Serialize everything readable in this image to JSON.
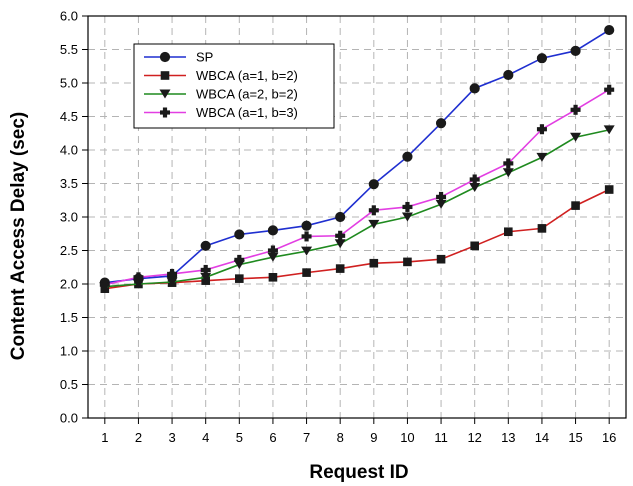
{
  "chart_data": {
    "type": "line",
    "title": "",
    "xlabel": "Request ID",
    "ylabel": "Content Access Delay (sec)",
    "x": [
      1,
      2,
      3,
      4,
      5,
      6,
      7,
      8,
      9,
      10,
      11,
      12,
      13,
      14,
      15,
      16
    ],
    "xlim": [
      0.5,
      16.5
    ],
    "ylim": [
      0.0,
      6.0
    ],
    "ytick_step": 0.5,
    "grid": true,
    "legend_position": "top-left",
    "series": [
      {
        "name": "SP",
        "color": "#1f2fd0",
        "marker": "circle",
        "values": [
          2.02,
          2.08,
          2.12,
          2.57,
          2.74,
          2.8,
          2.87,
          3.0,
          3.49,
          3.9,
          4.4,
          4.92,
          5.12,
          5.37,
          5.48,
          5.79
        ]
      },
      {
        "name": "WBCA (a=1, b=2)",
        "color": "#d02020",
        "marker": "square",
        "values": [
          1.93,
          2.0,
          2.02,
          2.05,
          2.08,
          2.1,
          2.17,
          2.23,
          2.31,
          2.33,
          2.37,
          2.57,
          2.78,
          2.83,
          3.17,
          3.41
        ]
      },
      {
        "name": "WBCA (a=2, b=2)",
        "color": "#1f8a1f",
        "marker": "triangle-down",
        "values": [
          1.96,
          2.0,
          2.03,
          2.1,
          2.29,
          2.4,
          2.49,
          2.6,
          2.89,
          3.0,
          3.19,
          3.44,
          3.66,
          3.89,
          4.19,
          4.3
        ]
      },
      {
        "name": "WBCA (a=1, b=3)",
        "color": "#e23ee2",
        "marker": "plus",
        "values": [
          1.99,
          2.1,
          2.15,
          2.21,
          2.36,
          2.5,
          2.71,
          2.72,
          3.1,
          3.15,
          3.3,
          3.56,
          3.8,
          4.31,
          4.6,
          4.9
        ]
      }
    ]
  }
}
